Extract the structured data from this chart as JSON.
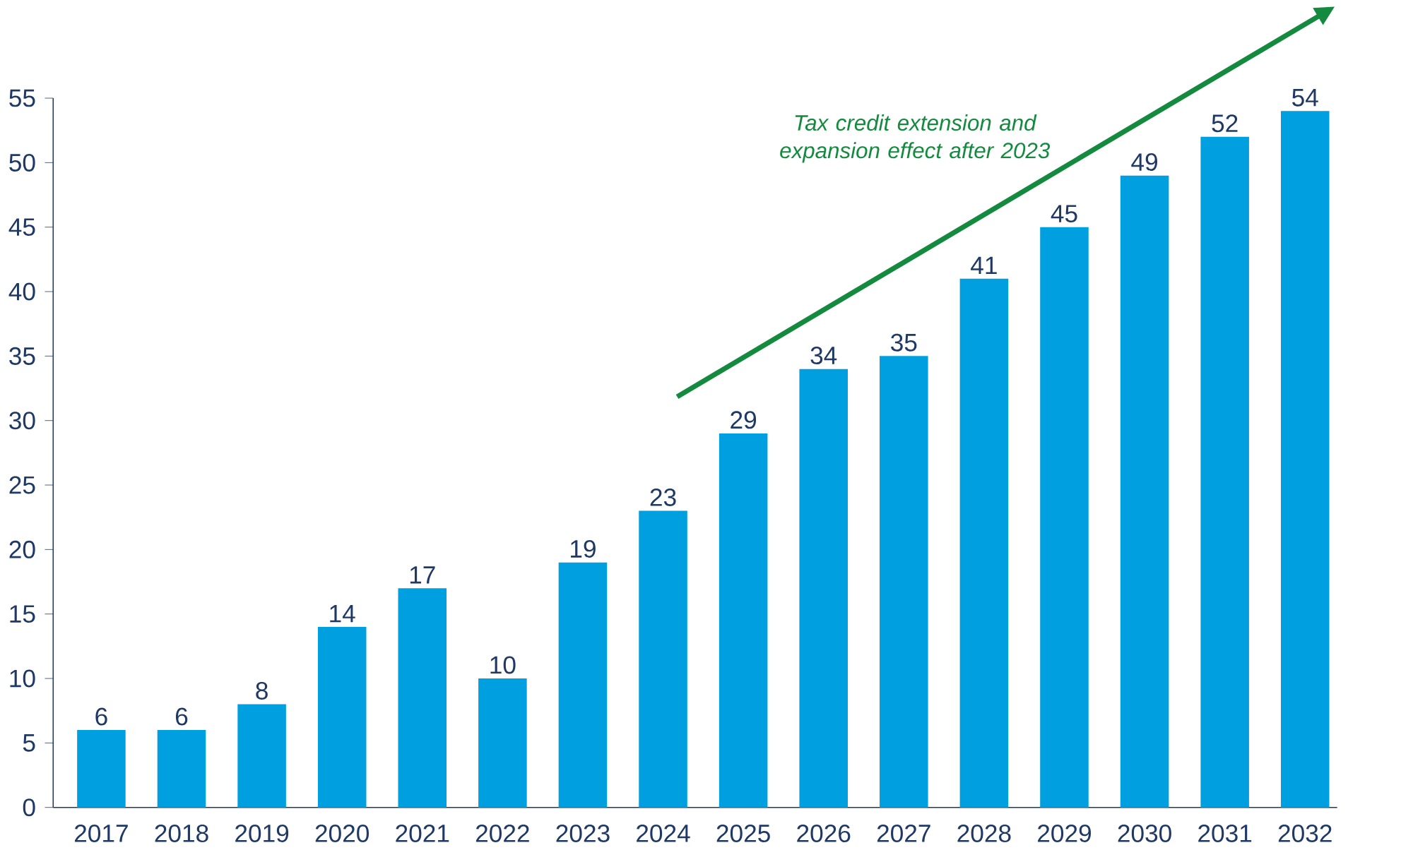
{
  "chart_data": {
    "type": "bar",
    "categories": [
      "2017",
      "2018",
      "2019",
      "2020",
      "2021",
      "2022",
      "2023",
      "2024",
      "2025",
      "2026",
      "2027",
      "2028",
      "2029",
      "2030",
      "2031",
      "2032"
    ],
    "values": [
      6,
      6,
      8,
      14,
      17,
      10,
      19,
      23,
      29,
      34,
      35,
      41,
      45,
      49,
      52,
      54
    ],
    "color": "#009fdf",
    "ylim": [
      0,
      55
    ],
    "yticks": [
      0,
      5,
      10,
      15,
      20,
      25,
      30,
      35,
      40,
      45,
      50,
      55
    ],
    "data_labels": true,
    "grid": false,
    "annotations": [
      "Tax credit extension and expansion effect after 2023"
    ]
  }
}
